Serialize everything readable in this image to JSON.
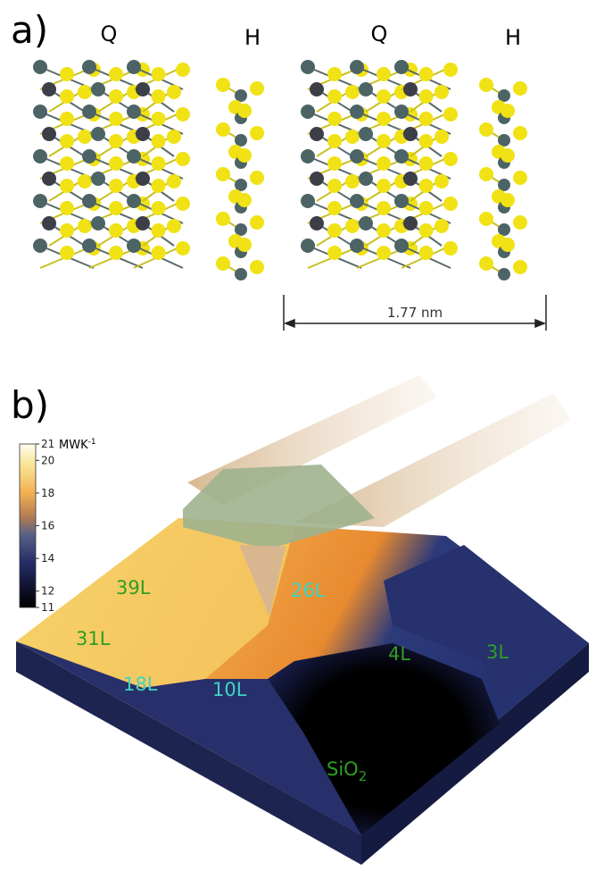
{
  "panel_a": {
    "label": "a)",
    "polytypes": [
      "Q",
      "H",
      "Q",
      "H"
    ],
    "scale_bar": "1.77 nm"
  },
  "panel_b": {
    "label": "b)",
    "colorbar": {
      "unit": "MWK",
      "unit_exponent": "-1",
      "range": [
        11,
        21
      ],
      "ticks": [
        21,
        20,
        18,
        16,
        14,
        12,
        11
      ]
    },
    "layer_labels": [
      "39L",
      "26L",
      "31L",
      "18L",
      "10L",
      "4L",
      "3L"
    ],
    "substrate": {
      "text": "SiO",
      "subscript": "2"
    }
  }
}
